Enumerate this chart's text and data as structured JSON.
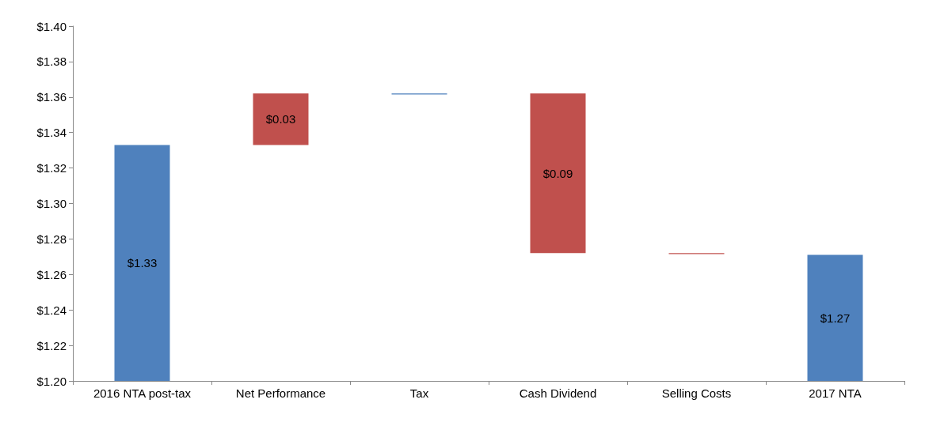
{
  "chart_data": {
    "type": "bar",
    "categories": [
      "2016 NTA post-tax",
      "Net Performance",
      "Tax",
      "Cash Dividend",
      "Selling Costs",
      "2017 NTA"
    ],
    "values": [
      1.333,
      0.029,
      -0.0005,
      -0.09,
      -0.0005,
      1.271
    ],
    "base": [
      null,
      1.333,
      1.362,
      1.362,
      1.272,
      null
    ],
    "colors": [
      "#4f81bd",
      "#c0504d",
      "#4f81bd",
      "#c0504d",
      "#c0504d",
      "#4f81bd"
    ],
    "value_labels": [
      "$1.33",
      "$0.03",
      null,
      "$0.09",
      null,
      "$1.27"
    ],
    "ylim": [
      1.2,
      1.4
    ],
    "yticks": [
      {
        "value": 1.2,
        "label": "$1.20"
      },
      {
        "value": 1.22,
        "label": "$1.22"
      },
      {
        "value": 1.24,
        "label": "$1.24"
      },
      {
        "value": 1.26,
        "label": "$1.26"
      },
      {
        "value": 1.28,
        "label": "$1.28"
      },
      {
        "value": 1.3,
        "label": "$1.30"
      },
      {
        "value": 1.32,
        "label": "$1.32"
      },
      {
        "value": 1.34,
        "label": "$1.34"
      },
      {
        "value": 1.36,
        "label": "$1.36"
      },
      {
        "value": 1.38,
        "label": "$1.38"
      },
      {
        "value": 1.4,
        "label": "$1.40"
      }
    ],
    "grid": false
  }
}
